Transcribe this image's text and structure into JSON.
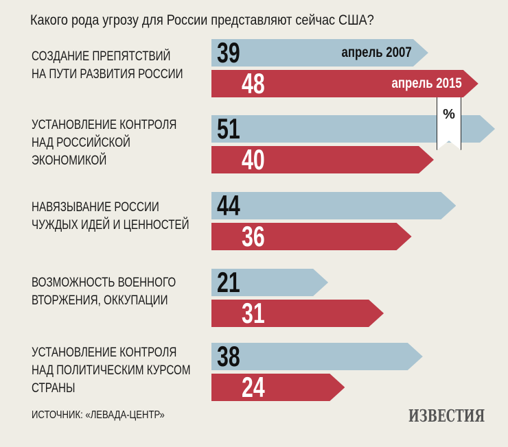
{
  "colors": {
    "y2007": "#a9c4d1",
    "y2015": "#bd3a47",
    "background": "#efede5"
  },
  "chart_data": {
    "type": "bar",
    "title": "Какого рода угрозу для России представляют сейчас США?",
    "unit": "%",
    "categories": [
      "Создание препятствий\nна пути развития России",
      "Установление контроля\nнад российской\nэкономикой",
      "Навязывание России\nчуждых идей и ценностей",
      "Возможность военного\nвторжения, оккупации",
      "Установление контроля\nнад политическим курсом\nстраны"
    ],
    "series": [
      {
        "name": "апрель 2007",
        "values": [
          39,
          51,
          44,
          21,
          38
        ]
      },
      {
        "name": "апрель 2015",
        "values": [
          48,
          40,
          36,
          31,
          24
        ]
      }
    ]
  },
  "source": "ИСТОЧНИК: «ЛЕВАДА-ЦЕНТР»",
  "logo": "ИЗВЕСТИЯ"
}
